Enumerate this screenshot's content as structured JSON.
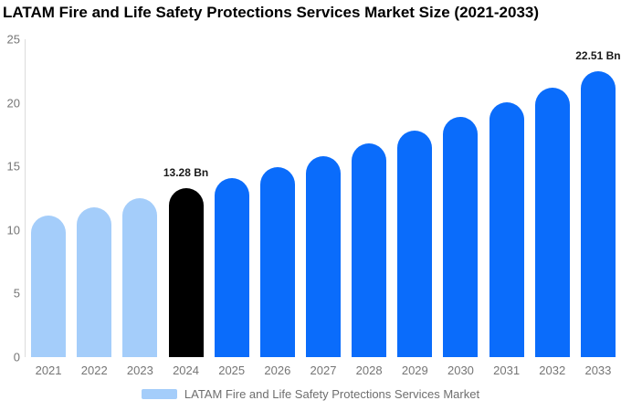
{
  "title": "LATAM Fire and Life Safety Protections Services Market Size (2021-2033)",
  "legend": {
    "label": "LATAM Fire and Life Safety Protections Services Market",
    "swatch_color": "#A4CDFA"
  },
  "colors": {
    "historical": "#A4CDFA",
    "current": "#000000",
    "forecast": "#0A6CFB",
    "axis_line": "#DCDCDC",
    "tick_text": "#757575",
    "annotation_text": "#1A1A1A"
  },
  "chart_data": {
    "type": "bar",
    "title": "LATAM Fire and Life Safety Protections Services Market Size (2021-2033)",
    "unit": "Bn",
    "categories": [
      "2021",
      "2022",
      "2023",
      "2024",
      "2025",
      "2026",
      "2027",
      "2028",
      "2029",
      "2030",
      "2031",
      "2032",
      "2033"
    ],
    "values": [
      11.14,
      11.81,
      12.53,
      13.28,
      14.08,
      14.93,
      15.83,
      16.79,
      17.8,
      18.87,
      20.01,
      21.22,
      22.51
    ],
    "segments": [
      "historical",
      "historical",
      "historical",
      "current",
      "forecast",
      "forecast",
      "forecast",
      "forecast",
      "forecast",
      "forecast",
      "forecast",
      "forecast",
      "forecast"
    ],
    "annotations": [
      {
        "category": "2024",
        "label": "13.28 Bn"
      },
      {
        "category": "2033",
        "label": "22.51 Bn"
      }
    ],
    "xlabel": "",
    "ylabel": "",
    "ylim": [
      0,
      25
    ],
    "yticks": [
      0,
      5,
      10,
      15,
      20,
      25
    ],
    "grid": false,
    "legend_position": "bottom"
  }
}
